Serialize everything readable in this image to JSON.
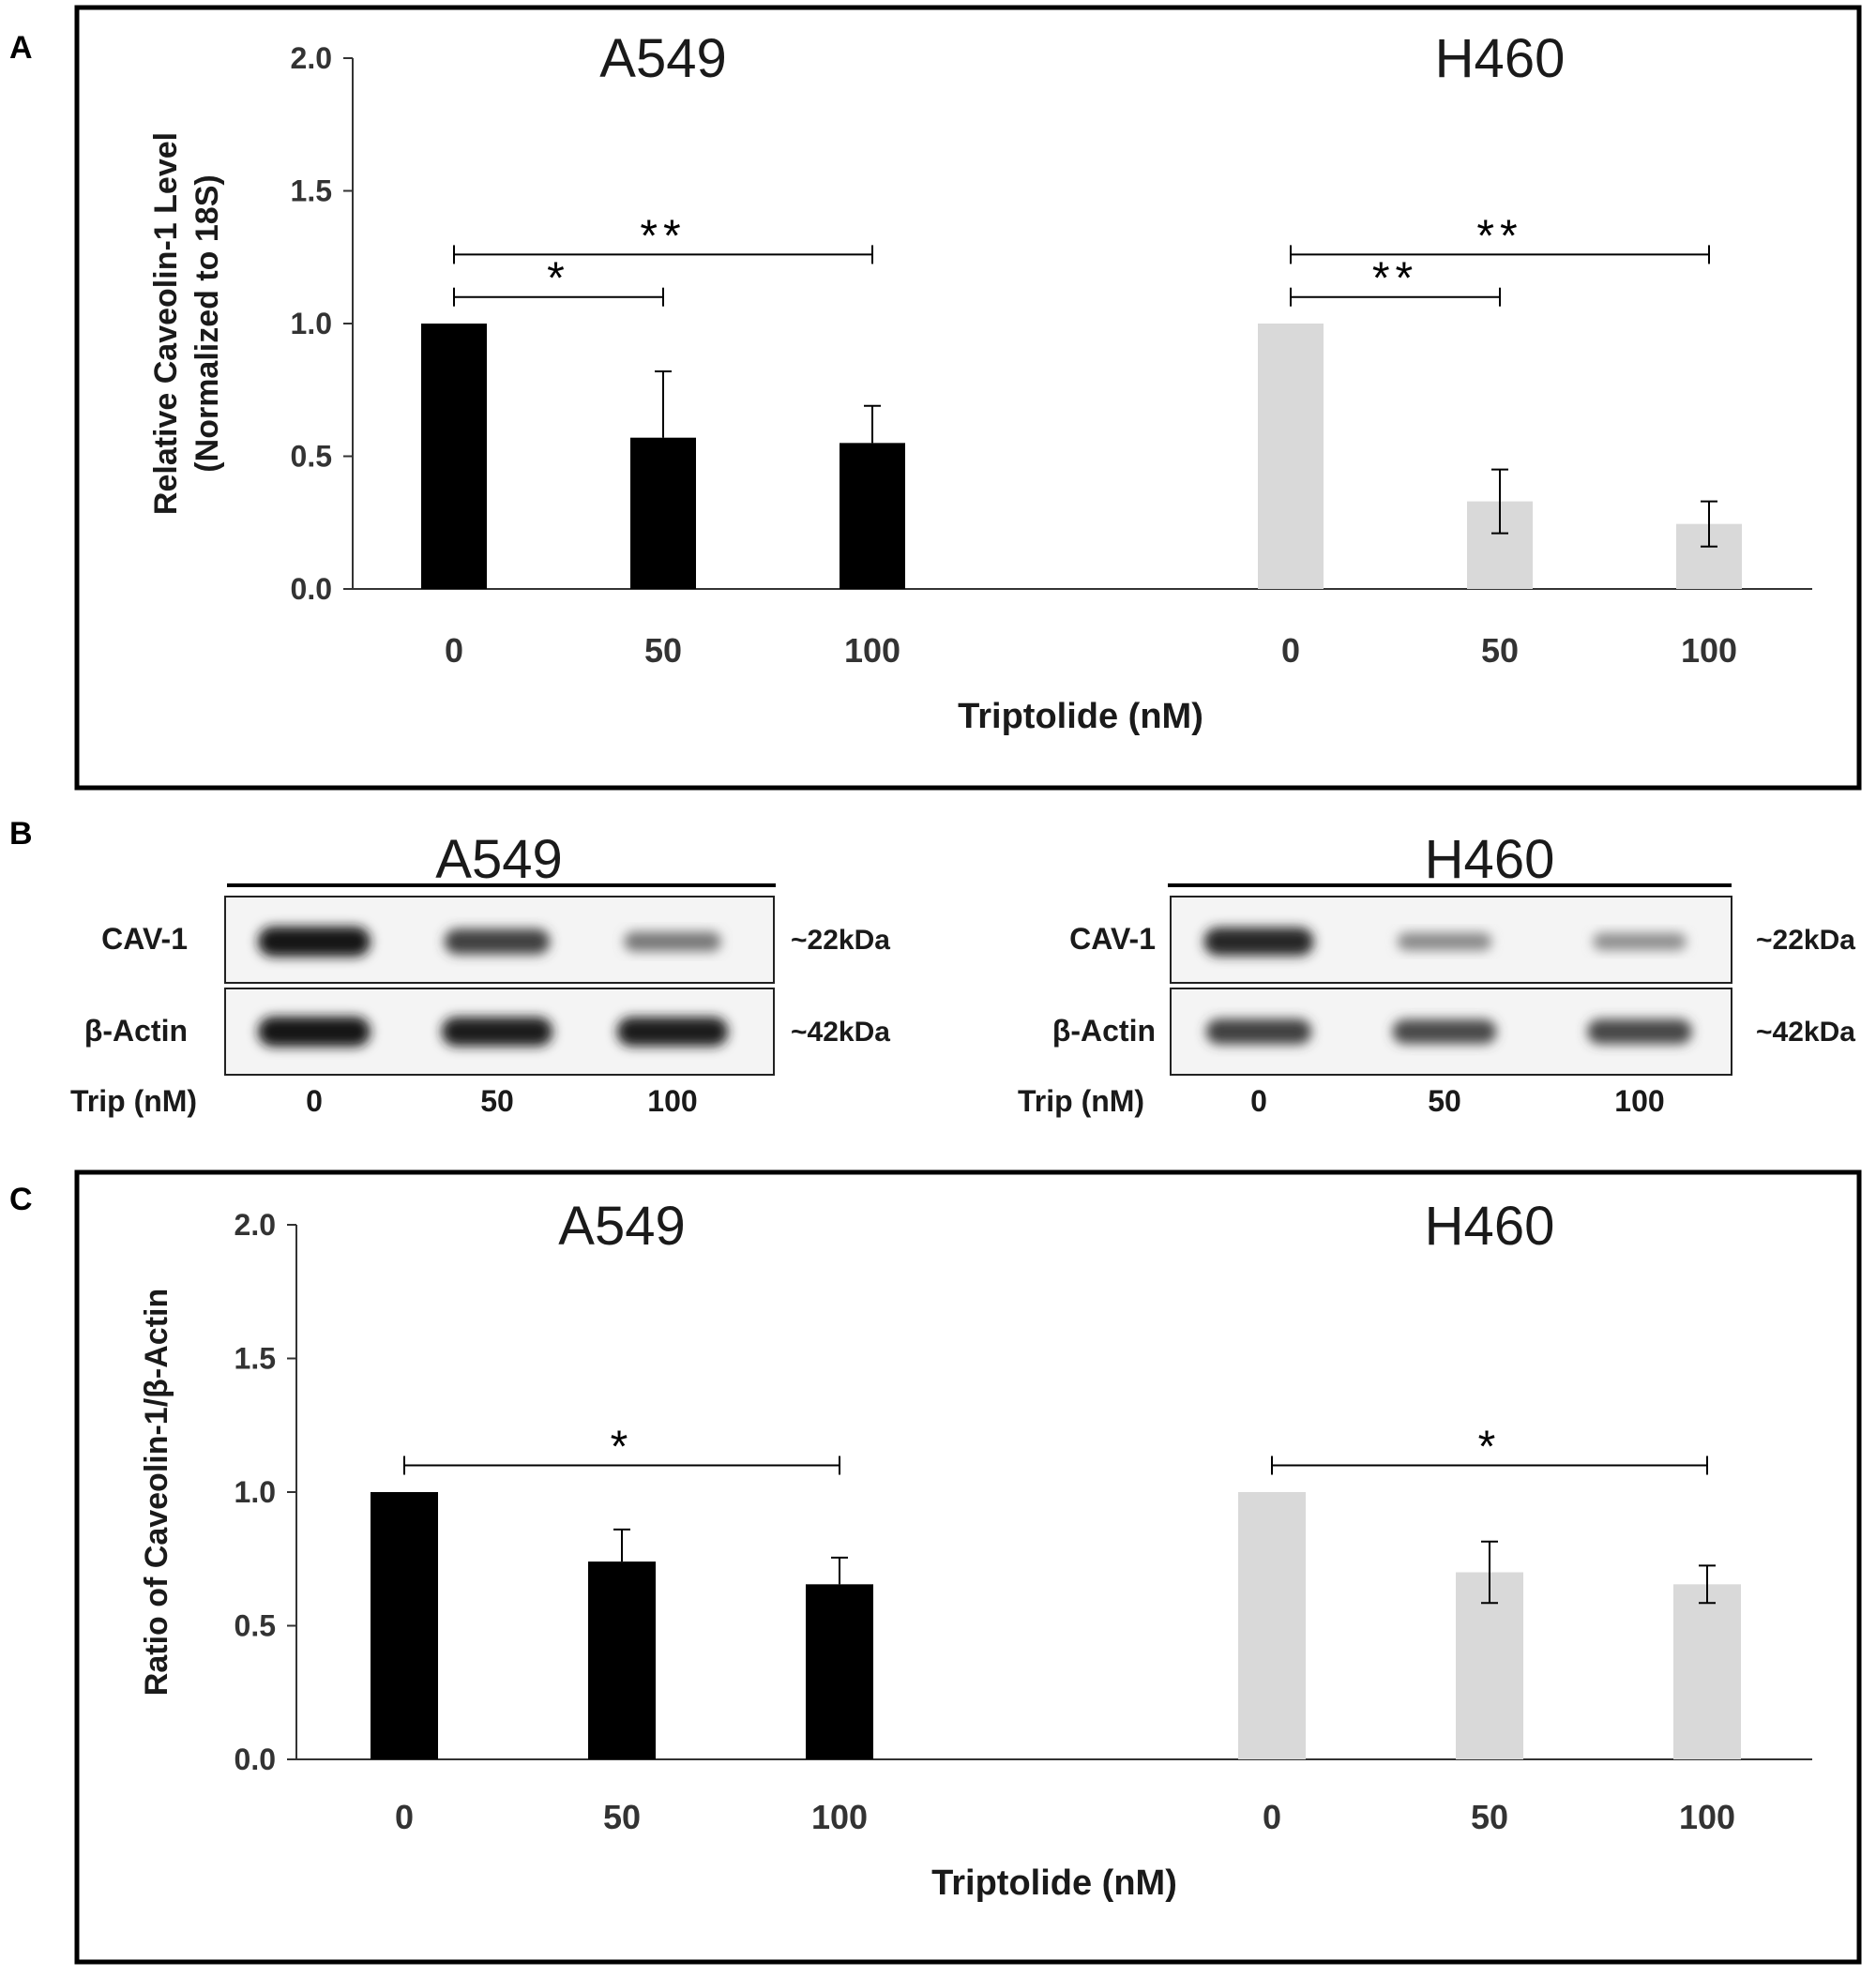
{
  "panels": {
    "A": {
      "label": "A",
      "chart_data": {
        "type": "bar",
        "groups": [
          {
            "title": "A549",
            "categories": [
              "0",
              "50",
              "100"
            ],
            "values": [
              1.0,
              0.57,
              0.55
            ],
            "errors": [
              0,
              0.25,
              0.14
            ],
            "color": "#000000"
          },
          {
            "title": "H460",
            "categories": [
              "0",
              "50",
              "100"
            ],
            "values": [
              1.0,
              0.33,
              0.245
            ],
            "errors": [
              0,
              0.12,
              0.085
            ],
            "color": "#d9d9d9"
          }
        ],
        "xlabel": "Triptolide (nM)",
        "ylabel_line1": "Relative Caveolin-1 Level",
        "ylabel_line2": "(Normalized to 18S)",
        "ylim": [
          0,
          2.0
        ],
        "yticks": [
          "0.0",
          "0.5",
          "1.0",
          "1.5",
          "2.0"
        ],
        "grid": false,
        "significance": [
          {
            "group": 0,
            "from": 0,
            "to": 1,
            "mark": "*",
            "level": 1.1
          },
          {
            "group": 0,
            "from": 0,
            "to": 2,
            "mark": "**",
            "level": 1.26
          },
          {
            "group": 1,
            "from": 0,
            "to": 1,
            "mark": "**",
            "level": 1.1
          },
          {
            "group": 1,
            "from": 0,
            "to": 2,
            "mark": "**",
            "level": 1.26
          }
        ]
      }
    },
    "B": {
      "label": "B",
      "blots": [
        {
          "title": "A549",
          "rows": [
            {
              "label": "CAV-1",
              "size": "~22kDa",
              "intensity": [
                1.0,
                0.75,
                0.45
              ]
            },
            {
              "label": "β-Actin",
              "size": "~42kDa",
              "intensity": [
                1.0,
                0.95,
                0.95
              ]
            }
          ],
          "trip_label": "Trip (nM)",
          "lanes": [
            "0",
            "50",
            "100"
          ]
        },
        {
          "title": "H460",
          "rows": [
            {
              "label": "CAV-1",
              "size": "~22kDa",
              "intensity": [
                0.9,
                0.35,
                0.32
              ]
            },
            {
              "label": "β-Actin",
              "size": "~42kDa",
              "intensity": [
                0.75,
                0.7,
                0.72
              ]
            }
          ],
          "trip_label": "Trip (nM)",
          "lanes": [
            "0",
            "50",
            "100"
          ]
        }
      ]
    },
    "C": {
      "label": "C",
      "chart_data": {
        "type": "bar",
        "groups": [
          {
            "title": "A549",
            "categories": [
              "0",
              "50",
              "100"
            ],
            "values": [
              1.0,
              0.74,
              0.655
            ],
            "errors": [
              0,
              0.12,
              0.1
            ],
            "color": "#000000"
          },
          {
            "title": "H460",
            "categories": [
              "0",
              "50",
              "100"
            ],
            "values": [
              1.0,
              0.7,
              0.655
            ],
            "errors": [
              0,
              0.115,
              0.07
            ],
            "color": "#d9d9d9"
          }
        ],
        "xlabel": "Triptolide (nM)",
        "ylabel_line1": "Ratio of Caveolin-1/β-Actin",
        "ylabel_line2": "",
        "ylim": [
          0,
          2.0
        ],
        "yticks": [
          "0.0",
          "0.5",
          "1.0",
          "1.5",
          "2.0"
        ],
        "grid": false,
        "significance": [
          {
            "group": 0,
            "from": 0,
            "to": 2,
            "mark": "*",
            "level": 1.1
          },
          {
            "group": 1,
            "from": 0,
            "to": 2,
            "mark": "*",
            "level": 1.1
          }
        ]
      }
    }
  }
}
